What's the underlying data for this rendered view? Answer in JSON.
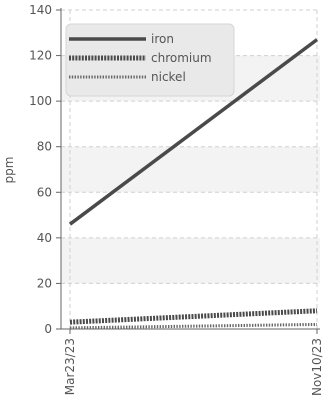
{
  "chart_data": {
    "type": "line",
    "title": "",
    "xlabel": "",
    "ylabel": "ppm",
    "categories": [
      "Mar23/23",
      "Nov10/23"
    ],
    "x_tick_labels": [
      "Mar23/23",
      "Nov10/23"
    ],
    "ylim": [
      0,
      140
    ],
    "y_ticks": [
      0,
      20,
      40,
      60,
      80,
      100,
      120,
      140
    ],
    "y_tick_labels": [
      "0",
      "20",
      "40",
      "60",
      "80",
      "100",
      "120",
      "140"
    ],
    "grid": true,
    "legend_position": "top-left",
    "series": [
      {
        "name": "iron",
        "values": [
          46,
          127
        ],
        "color": "#4a4a4a",
        "style": "solid"
      },
      {
        "name": "chromium",
        "values": [
          3,
          8
        ],
        "color": "#4a4a4a",
        "style": "dotted-thick"
      },
      {
        "name": "nickel",
        "values": [
          0.5,
          2
        ],
        "color": "#666666",
        "style": "dotted-thin"
      }
    ]
  }
}
